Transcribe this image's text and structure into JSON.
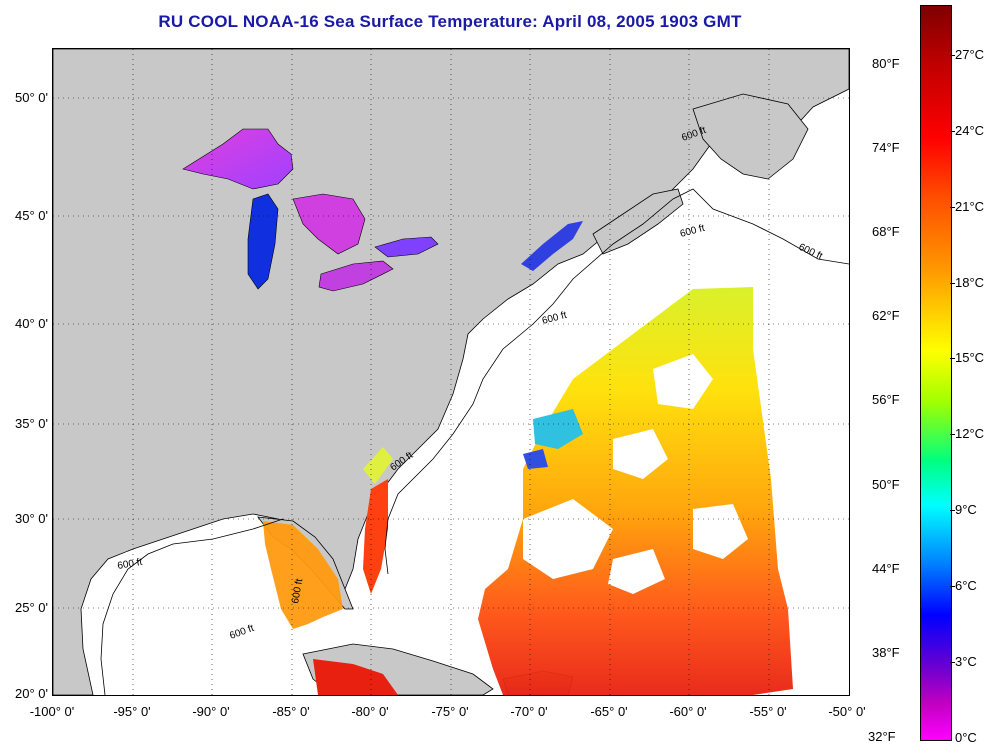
{
  "title": "RU COOL  NOAA-16  Sea Surface Temperature:  April 08, 2005 1903 GMT",
  "lat_labels": [
    "50° 0'",
    "45° 0'",
    "40° 0'",
    "35° 0'",
    "30° 0'",
    "25° 0'",
    "20° 0'"
  ],
  "lon_labels": [
    "-100° 0'",
    "-95° 0'",
    "-90° 0'",
    "-85° 0'",
    "-80° 0'",
    "-75° 0'",
    "-70° 0'",
    "-65° 0'",
    "-60° 0'",
    "-55° 0'",
    "-50° 0'"
  ],
  "contour_labels": [
    "600 ft",
    "600 ft",
    "600 ft",
    "600 ft",
    "600 ft",
    "600 ft",
    "600 ft",
    "600 ft"
  ],
  "colorbar": {
    "fahrenheit": [
      "80°F",
      "74°F",
      "68°F",
      "62°F",
      "56°F",
      "50°F",
      "44°F",
      "38°F",
      "32°F"
    ],
    "celsius": [
      "27°C",
      "24°C",
      "21°C",
      "18°C",
      "15°C",
      "12°C",
      "9°C",
      "6°C",
      "3°C",
      "0°C"
    ]
  },
  "colors": {
    "title": "#1a1aa6",
    "land": "#c8c8c8",
    "ocean": "#ffffff"
  }
}
